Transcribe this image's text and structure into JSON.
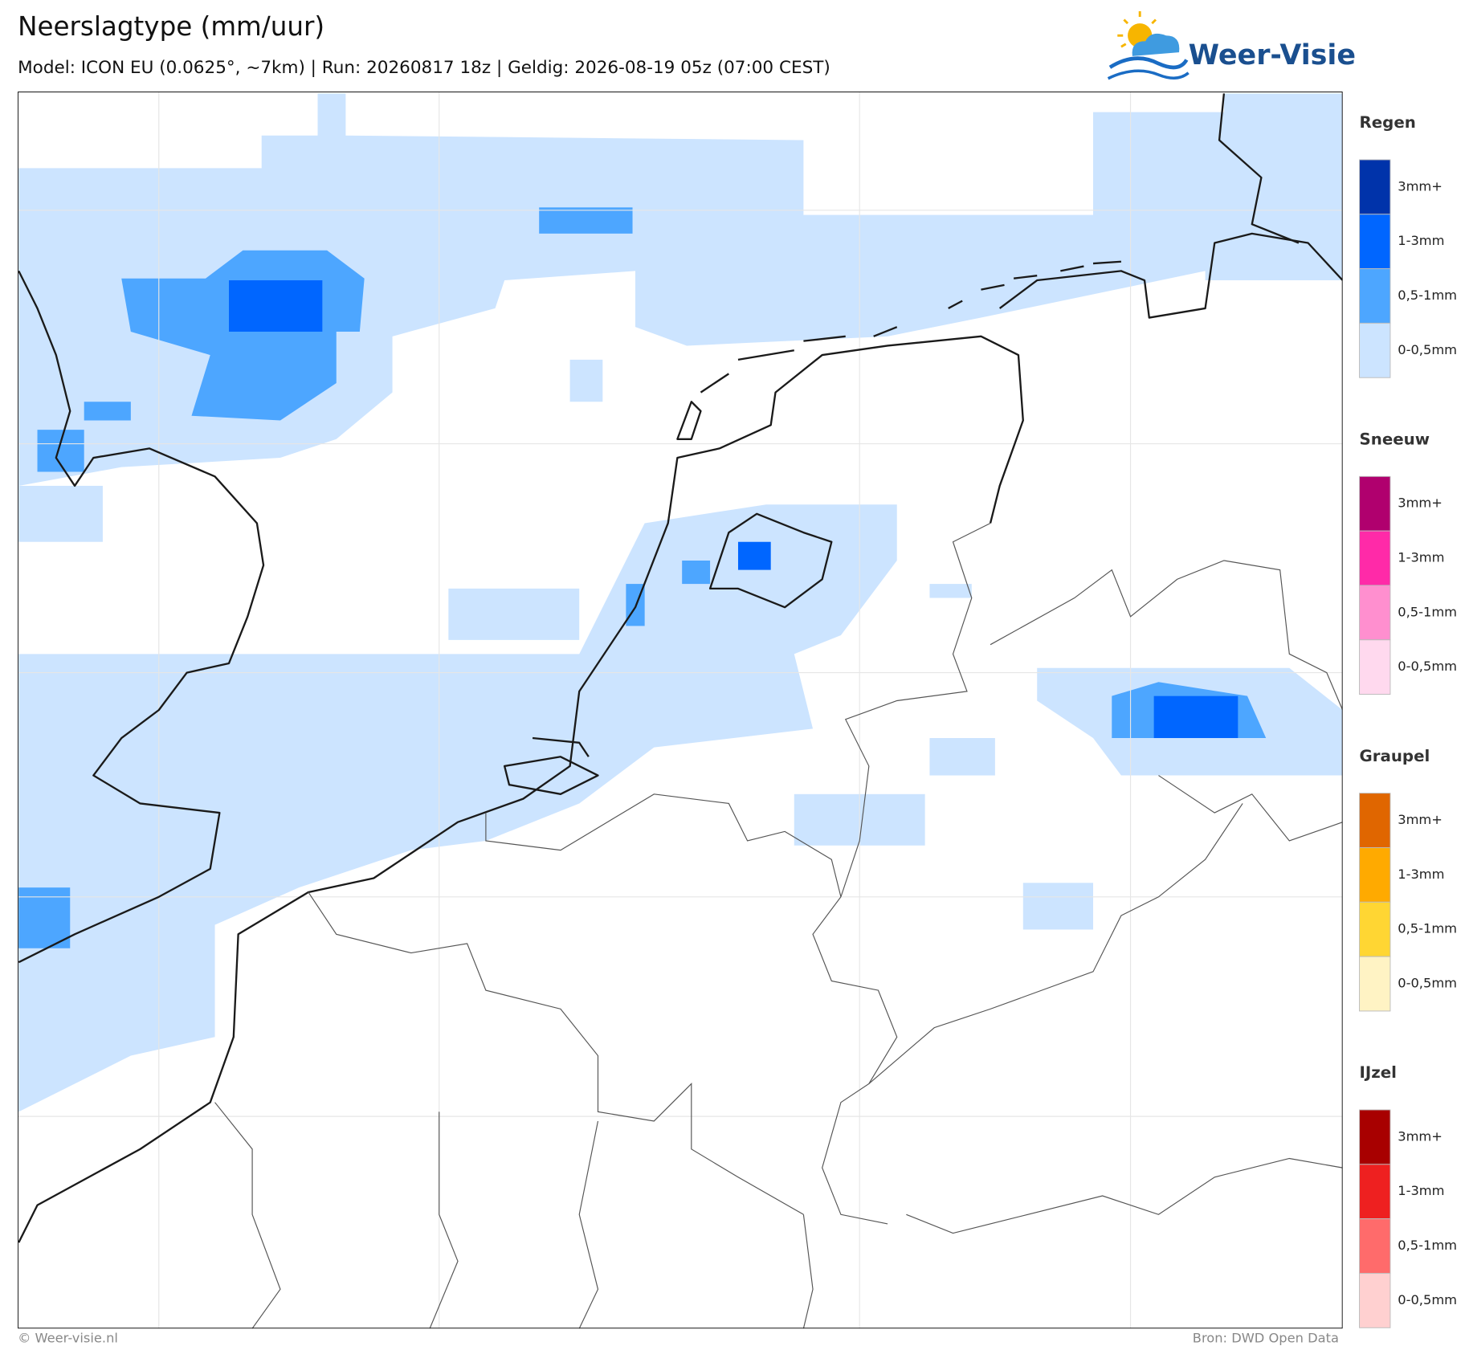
{
  "header": {
    "title": "Neerslagtype (mm/uur)",
    "subtitle": "Model: ICON EU (0.0625°, ~7km)  |  Run: 20260817 18z  |  Geldig: 2026-08-19 05z (07:00 CEST)"
  },
  "logo": {
    "text": "Weer-Visie"
  },
  "legend": {
    "groups": [
      {
        "title": "Regen",
        "items": [
          {
            "label": "3mm+",
            "color": "#0033aa"
          },
          {
            "label": "1-3mm",
            "color": "#0066ff"
          },
          {
            "label": "0,5-1mm",
            "color": "#4da6ff"
          },
          {
            "label": "0-0,5mm",
            "color": "#cce4ff"
          }
        ]
      },
      {
        "title": "Sneeuw",
        "items": [
          {
            "label": "3mm+",
            "color": "#b0006e"
          },
          {
            "label": "1-3mm",
            "color": "#ff2aa8"
          },
          {
            "label": "0,5-1mm",
            "color": "#ff8fcf"
          },
          {
            "label": "0-0,5mm",
            "color": "#ffd9ee"
          }
        ]
      },
      {
        "title": "Graupel",
        "items": [
          {
            "label": "3mm+",
            "color": "#e06600"
          },
          {
            "label": "1-3mm",
            "color": "#ffaa00"
          },
          {
            "label": "0,5-1mm",
            "color": "#ffd633"
          },
          {
            "label": "0-0,5mm",
            "color": "#fff3c4"
          }
        ]
      },
      {
        "title": "IJzel",
        "items": [
          {
            "label": "3mm+",
            "color": "#a80000"
          },
          {
            "label": "1-3mm",
            "color": "#ee2020"
          },
          {
            "label": "0,5-1mm",
            "color": "#ff6b6b"
          },
          {
            "label": "0-0,5mm",
            "color": "#ffd0d0"
          }
        ]
      }
    ]
  },
  "footer": {
    "left": "© Weer-visie.nl",
    "right": "Bron: DWD Open Data"
  }
}
